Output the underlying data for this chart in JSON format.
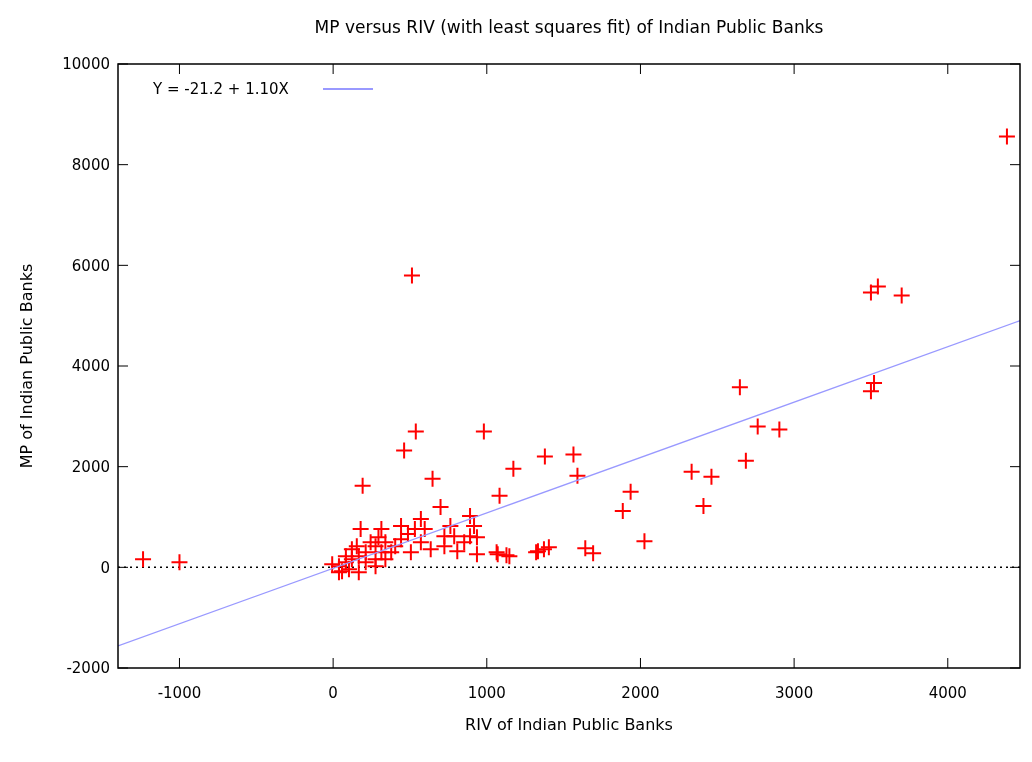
{
  "chart_data": {
    "type": "scatter",
    "title": "MP versus RIV (with least squares fit) of  Indian Public Banks",
    "xlabel": "RIV of  Indian Public Banks",
    "ylabel": "MP of  Indian Public Banks",
    "xlim": [
      -1400,
      4470
    ],
    "ylim": [
      -2000,
      10000
    ],
    "xticks": [
      -1000,
      0,
      1000,
      2000,
      3000,
      4000
    ],
    "yticks": [
      -2000,
      0,
      2000,
      4000,
      6000,
      8000,
      10000
    ],
    "grid": false,
    "legend": "top left",
    "ref_lines": [
      {
        "axis": "y",
        "value": 0,
        "color": "#000000",
        "line_style": "dotted"
      }
    ],
    "series": [
      {
        "color": "#ff0000",
        "marker": "cross",
        "x": [
          -1237,
          -1000,
          513,
          538,
          462,
          192,
          981,
          647,
          1378,
          1564,
          1590,
          1173,
          1083,
          699,
          2647,
          2686,
          2763,
          2904,
          2333,
          2462,
          2410,
          1936,
          1885,
          2026,
          3500,
          3520,
          3500,
          3545,
          3700,
          4385,
          1333,
          1372,
          1128,
          1071,
          1641,
          1692,
          936,
          179,
          442,
          571,
          891,
          917,
          763,
          788,
          808,
          936,
          724,
          596,
          532,
          487,
          571,
          442,
          404,
          340,
          314,
          276,
          212,
          167,
          122,
          83,
          38,
          -6,
          103,
          58,
          212,
          276,
          340,
          378,
          506,
          635,
          724,
          853,
          891,
          154,
          244,
          295,
          314,
          276,
          167,
          38,
          122,
          83,
          1064,
          1147,
          1321,
          1404
        ],
        "values": [
          160,
          100,
          5800,
          2700,
          2320,
          1620,
          2700,
          1760,
          2200,
          2240,
          1820,
          1960,
          1420,
          1200,
          3580,
          2120,
          2800,
          2740,
          1900,
          1800,
          1220,
          1500,
          1120,
          520,
          3500,
          3660,
          5460,
          5580,
          5400,
          8560,
          320,
          360,
          240,
          260,
          380,
          280,
          260,
          760,
          820,
          960,
          1020,
          820,
          820,
          620,
          320,
          600,
          620,
          760,
          760,
          660,
          500,
          560,
          420,
          500,
          300,
          420,
          300,
          220,
          160,
          100,
          20,
          60,
          -40,
          -80,
          100,
          160,
          160,
          300,
          300,
          360,
          420,
          500,
          620,
          420,
          500,
          600,
          760,
          20,
          -100,
          -100,
          360,
          220,
          300,
          220,
          300,
          400
        ]
      },
      {
        "type": "line",
        "name": "Y = -21.2 + 1.10X",
        "color": "#9999ff",
        "marker": "none",
        "line_style": "solid",
        "x": [
          -1400,
          4470
        ],
        "values": [
          -1560,
          4900
        ]
      }
    ]
  }
}
